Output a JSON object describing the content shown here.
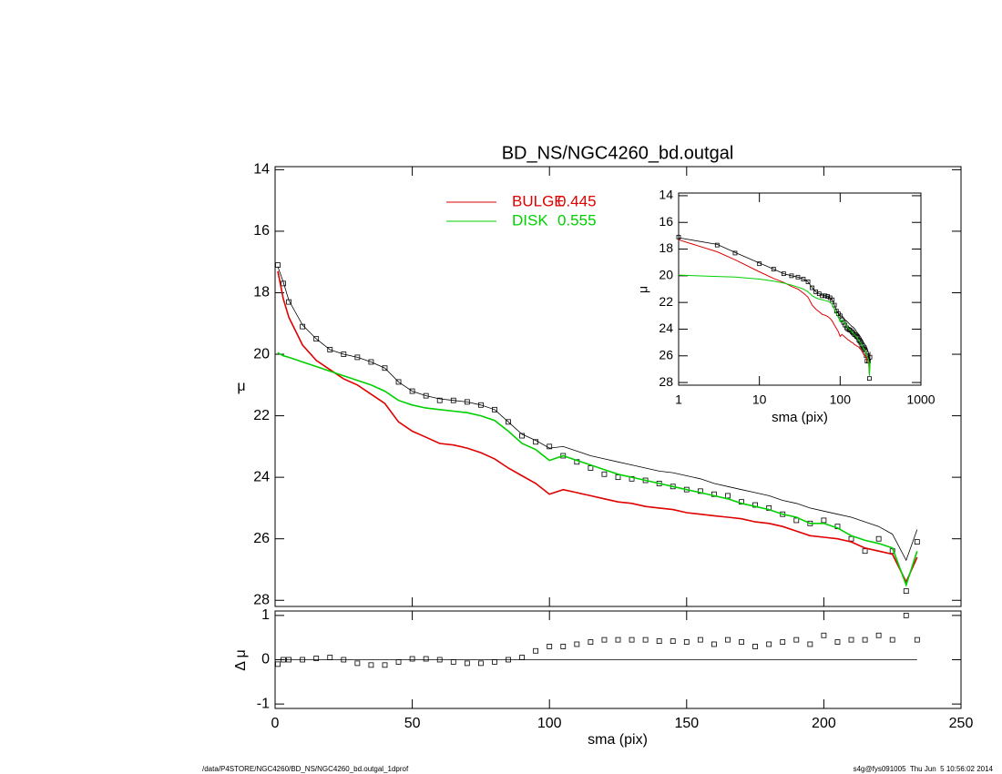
{
  "chart_data": [
    {
      "type": "line",
      "title": "BD_NS/NGC4260_bd.outgal",
      "ylabel": "μ",
      "xlim": [
        0,
        250
      ],
      "ylim": [
        13.9,
        28.2
      ],
      "yticks": [
        14,
        16,
        18,
        20,
        22,
        24,
        26,
        28
      ],
      "y_reversed": true,
      "x": [
        1,
        3,
        5,
        10,
        15,
        20,
        25,
        30,
        35,
        40,
        45,
        50,
        55,
        60,
        65,
        70,
        75,
        80,
        85,
        90,
        95,
        100,
        105,
        110,
        115,
        120,
        125,
        130,
        135,
        140,
        145,
        150,
        155,
        160,
        165,
        170,
        175,
        180,
        185,
        190,
        195,
        200,
        205,
        210,
        215,
        220,
        225,
        230,
        234
      ],
      "series": [
        {
          "color": "#000000",
          "marker": "square",
          "values": [
            17.1,
            17.7,
            18.3,
            19.1,
            19.5,
            19.85,
            20.0,
            20.1,
            20.25,
            20.45,
            20.9,
            21.2,
            21.35,
            21.5,
            21.5,
            21.55,
            21.65,
            21.8,
            22.2,
            22.65,
            22.85,
            23.0,
            23.3,
            23.5,
            23.7,
            23.9,
            24.0,
            24.05,
            24.1,
            24.2,
            24.3,
            24.4,
            24.45,
            24.55,
            24.6,
            24.8,
            24.9,
            25.0,
            25.2,
            25.4,
            25.5,
            25.4,
            25.6,
            26.0,
            26.4,
            26.0,
            26.4,
            27.7,
            26.1
          ]
        },
        {
          "color": "#000000",
          "values": [
            17.15,
            17.65,
            18.25,
            19.05,
            19.5,
            19.85,
            20.0,
            20.1,
            20.25,
            20.45,
            20.9,
            21.2,
            21.35,
            21.45,
            21.5,
            21.55,
            21.65,
            21.8,
            22.2,
            22.6,
            22.8,
            23.05,
            23.0,
            23.15,
            23.3,
            23.4,
            23.5,
            23.6,
            23.7,
            23.8,
            23.85,
            23.95,
            24.05,
            24.2,
            24.3,
            24.4,
            24.5,
            24.6,
            24.75,
            24.85,
            25.0,
            25.1,
            25.2,
            25.3,
            25.45,
            25.6,
            25.85,
            26.7,
            25.7
          ]
        },
        {
          "name": "BULGE",
          "fraction": 0.445,
          "color": "#e00000",
          "values": [
            17.3,
            18.2,
            18.8,
            19.7,
            20.2,
            20.5,
            20.8,
            21.0,
            21.3,
            21.6,
            22.2,
            22.5,
            22.7,
            22.9,
            22.95,
            23.05,
            23.2,
            23.4,
            23.7,
            23.95,
            24.2,
            24.55,
            24.4,
            24.5,
            24.6,
            24.7,
            24.8,
            24.85,
            24.95,
            25.0,
            25.05,
            25.15,
            25.2,
            25.25,
            25.3,
            25.35,
            25.45,
            25.5,
            25.6,
            25.75,
            25.9,
            25.95,
            26.0,
            26.1,
            26.3,
            26.4,
            26.5,
            27.4,
            26.6
          ]
        },
        {
          "name": "DISK",
          "fraction": 0.555,
          "color": "#00d000",
          "values": [
            19.95,
            20.05,
            20.1,
            20.25,
            20.4,
            20.55,
            20.7,
            20.85,
            21.0,
            21.2,
            21.5,
            21.65,
            21.75,
            21.8,
            21.85,
            21.9,
            22.0,
            22.15,
            22.5,
            22.9,
            23.1,
            23.45,
            23.3,
            23.45,
            23.6,
            23.75,
            23.9,
            24.0,
            24.1,
            24.2,
            24.3,
            24.4,
            24.5,
            24.6,
            24.7,
            24.85,
            24.95,
            25.05,
            25.2,
            25.3,
            25.5,
            25.5,
            25.65,
            25.9,
            26.05,
            26.15,
            26.3,
            27.5,
            26.4
          ]
        }
      ]
    },
    {
      "type": "scatter",
      "xlabel": "sma (pix)",
      "ylabel": "Δ μ",
      "xlim": [
        0,
        250
      ],
      "ylim": [
        -1.1,
        1.1
      ],
      "xticks": [
        0,
        50,
        100,
        150,
        200,
        250
      ],
      "yticks": [
        -1,
        0,
        1
      ],
      "values": [
        -0.1,
        0.0,
        0.0,
        0.0,
        0.03,
        0.05,
        0.0,
        -0.08,
        -0.12,
        -0.12,
        -0.05,
        0.02,
        0.02,
        0.0,
        -0.05,
        -0.08,
        -0.08,
        -0.05,
        0.0,
        0.05,
        0.2,
        0.3,
        0.3,
        0.35,
        0.4,
        0.45,
        0.45,
        0.45,
        0.45,
        0.42,
        0.42,
        0.4,
        0.45,
        0.35,
        0.45,
        0.4,
        0.3,
        0.35,
        0.4,
        0.45,
        0.35,
        0.55,
        0.4,
        0.45,
        0.45,
        0.55,
        0.45,
        1.0,
        0.45
      ]
    },
    {
      "type": "line",
      "xlabel": "sma (pix)",
      "ylabel": "μ",
      "xlog": true,
      "xlim": [
        1,
        1000
      ],
      "ylim": [
        13.8,
        28.2
      ],
      "xticks": [
        1,
        10,
        100,
        1000
      ],
      "yticks": [
        14,
        16,
        18,
        20,
        22,
        24,
        26,
        28
      ],
      "y_reversed": true
    }
  ],
  "footer": {
    "left": "/data/P4STORE/NGC4260/BD_NS/NGC4260_bd.outgal_1dprof",
    "right": "s4g@fys091005  Thu Jun  5 10:56:02 2014"
  }
}
